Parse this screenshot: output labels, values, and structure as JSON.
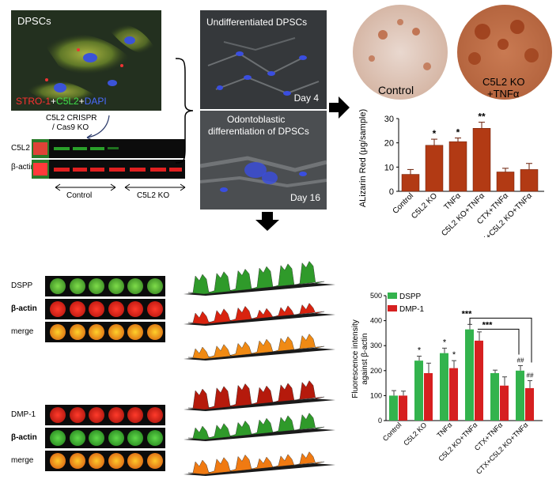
{
  "fluorescence": {
    "title": "DPSCs",
    "stain_red": "STRO-1",
    "stain_plus1": "+",
    "stain_green": "C5L2",
    "stain_plus2": "+",
    "stain_blue": "DAPI"
  },
  "crispr_label_line1": "C5L2 CRISPR",
  "crispr_label_line2": "/ Cas9 KO",
  "western": {
    "row1": "C5L2",
    "row2": "β-actin",
    "group1": "Control",
    "group2": "C5L2 KO"
  },
  "micrographs": {
    "top_title": "Undifferentiated DPSCs",
    "top_day": "Day 4",
    "bottom_title_line1": "Odontoblastic",
    "bottom_title_line2": "differentiation of DPSCs",
    "bottom_day": "Day 16"
  },
  "stains": {
    "left_label": "Control",
    "right_label_line1": "C5L2 KO",
    "right_label_line2": "+TNFα"
  },
  "dot_blots": {
    "top_rows": [
      "DSPP",
      "β-actin",
      "merge"
    ],
    "bottom_rows": [
      "DMP-1",
      "β-actin",
      "merge"
    ]
  },
  "chart_data": [
    {
      "type": "bar",
      "ylabel": "ALizarin Red (μg/sample)",
      "categories": [
        "Control",
        "C5L2 KO",
        "TNFα",
        "C5L2 KO+TNFα",
        "CTX+TNFα",
        "CTX+C5L2 KO+TNFα"
      ],
      "values": [
        7,
        19,
        20.5,
        26,
        8,
        9
      ],
      "errors": [
        2,
        2.5,
        1.5,
        2.5,
        1.5,
        2.5
      ],
      "significance": [
        "",
        "*",
        "*",
        "**",
        "",
        ""
      ],
      "yticks": [
        "0",
        "10",
        "20",
        "30"
      ],
      "ylim": [
        0,
        30
      ],
      "color": "#b23a14"
    },
    {
      "type": "bar",
      "ylabel": "Fluorescence intensity against β-actin",
      "categories": [
        "Control",
        "C5L2 KO",
        "TNFα",
        "C5L2 KO+TNFα",
        "CTX+TNFα",
        "CTX+C5L2 KO+TNFα"
      ],
      "series": [
        {
          "name": "DSPP",
          "color": "#33b34d",
          "values": [
            100,
            240,
            270,
            365,
            190,
            200
          ],
          "errors": [
            20,
            18,
            20,
            20,
            12,
            20
          ]
        },
        {
          "name": "DMP-1",
          "color": "#d62020",
          "values": [
            100,
            190,
            210,
            320,
            140,
            130
          ],
          "errors": [
            18,
            40,
            30,
            35,
            35,
            30
          ]
        }
      ],
      "significance_dspp": [
        "",
        "*",
        "*",
        "",
        "",
        "##"
      ],
      "significance_dmp": [
        "",
        "",
        "*",
        "",
        "",
        "##"
      ],
      "brackets": [
        "***",
        "***"
      ],
      "yticks": [
        "0",
        "100",
        "200",
        "300",
        "400",
        "500"
      ],
      "ylim": [
        0,
        500
      ]
    }
  ]
}
